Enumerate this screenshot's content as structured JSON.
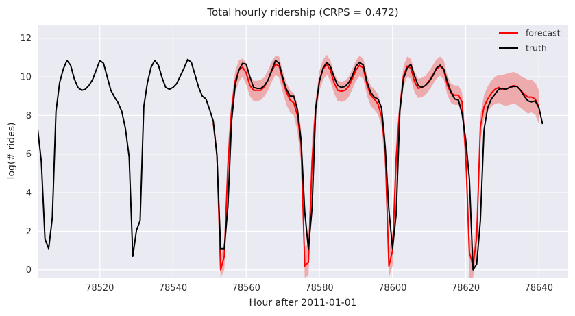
{
  "chart_data": {
    "type": "line",
    "title": "Total hourly ridership (CRPS = 0.472)",
    "xlabel": "Hour after 2011-01-01",
    "ylabel": "log(# rides)",
    "xlim": [
      78503,
      78648
    ],
    "ylim": [
      -0.4,
      12.7
    ],
    "xticks": [
      78520,
      78540,
      78560,
      78580,
      78600,
      78620,
      78640
    ],
    "yticks": [
      0,
      2,
      4,
      6,
      8,
      10,
      12
    ],
    "grid": true,
    "legend": {
      "placement": "top-right",
      "entries": [
        {
          "label": "forecast",
          "color": "#ff0000"
        },
        {
          "label": "truth",
          "color": "#000000"
        }
      ]
    },
    "series": [
      {
        "name": "truth",
        "color": "#000000",
        "x_start": 78503,
        "values": [
          7.3,
          5.6,
          1.6,
          1.1,
          2.7,
          8.2,
          9.7,
          10.4,
          10.85,
          10.6,
          9.9,
          9.45,
          9.3,
          9.35,
          9.55,
          9.85,
          10.35,
          10.85,
          10.7,
          10.0,
          9.3,
          8.95,
          8.65,
          8.2,
          7.3,
          5.85,
          0.7,
          2.05,
          2.55,
          8.45,
          9.7,
          10.5,
          10.85,
          10.6,
          9.95,
          9.45,
          9.35,
          9.45,
          9.65,
          10.05,
          10.45,
          10.9,
          10.75,
          10.1,
          9.45,
          9.0,
          8.85,
          8.3,
          7.7,
          5.9,
          1.1,
          1.1,
          3.3,
          7.7,
          9.6,
          10.35,
          10.7,
          10.65,
          10.0,
          9.45,
          9.4,
          9.4,
          9.55,
          9.85,
          10.35,
          10.85,
          10.7,
          9.95,
          9.35,
          9.0,
          9.0,
          8.3,
          6.7,
          3.0,
          1.1,
          3.2,
          8.35,
          9.75,
          10.45,
          10.75,
          10.55,
          10.0,
          9.55,
          9.45,
          9.5,
          9.7,
          10.05,
          10.55,
          10.75,
          10.6,
          9.75,
          9.2,
          8.95,
          8.85,
          8.4,
          6.35,
          3.1,
          1.1,
          2.9,
          8.25,
          9.9,
          10.45,
          10.65,
          10.05,
          9.55,
          9.45,
          9.55,
          9.75,
          10.05,
          10.45,
          10.6,
          10.4,
          9.75,
          9.2,
          8.85,
          8.8,
          8.1,
          6.75,
          4.7,
          0.0,
          0.3,
          2.55,
          7.25,
          8.4,
          8.85,
          9.1,
          9.35,
          9.4,
          9.35,
          9.45,
          9.5,
          9.5,
          9.3,
          9.0,
          8.75,
          8.7,
          8.75,
          8.4,
          7.55
        ]
      },
      {
        "name": "forecast",
        "color": "#ff0000",
        "band_color": "#f08080",
        "x_start": 78551,
        "values": [
          7.6,
          6.0,
          0.0,
          0.7,
          5.4,
          8.3,
          9.8,
          10.35,
          10.5,
          10.2,
          9.55,
          9.3,
          9.3,
          9.3,
          9.5,
          9.85,
          10.3,
          10.65,
          10.55,
          9.8,
          9.2,
          8.8,
          8.65,
          8.0,
          6.5,
          0.2,
          0.4,
          5.6,
          8.4,
          9.8,
          10.4,
          10.65,
          10.35,
          9.7,
          9.3,
          9.25,
          9.3,
          9.5,
          9.9,
          10.35,
          10.6,
          10.45,
          9.6,
          9.05,
          8.85,
          8.6,
          7.95,
          6.2,
          0.2,
          1.0,
          5.8,
          8.4,
          10.05,
          10.55,
          10.45,
          9.75,
          9.4,
          9.45,
          9.55,
          9.8,
          10.1,
          10.4,
          10.55,
          10.35,
          9.55,
          9.15,
          9.05,
          9.05,
          8.7,
          6.0,
          0.9,
          0.2,
          1.7,
          7.4,
          8.45,
          8.85,
          9.15,
          9.35,
          9.45,
          9.35,
          9.35,
          9.45,
          9.55,
          9.5,
          9.3,
          9.1,
          8.95,
          8.95,
          8.85,
          8.45
        ],
        "lower": [
          7.3,
          5.6,
          -0.4,
          0.0,
          3.5,
          7.7,
          9.2,
          9.75,
          10.0,
          9.6,
          9.0,
          8.75,
          8.75,
          8.8,
          9.0,
          9.3,
          9.75,
          10.1,
          9.95,
          9.2,
          8.55,
          8.15,
          8.0,
          7.2,
          5.5,
          -0.4,
          -0.3,
          3.5,
          7.8,
          9.25,
          9.85,
          10.1,
          9.8,
          9.15,
          8.75,
          8.7,
          8.75,
          8.95,
          9.35,
          9.8,
          10.05,
          9.9,
          9.05,
          8.5,
          8.3,
          8.05,
          7.4,
          5.2,
          -0.4,
          0.2,
          3.8,
          7.8,
          9.5,
          10.0,
          9.9,
          9.2,
          8.9,
          8.95,
          9.05,
          9.3,
          9.6,
          9.9,
          10.05,
          9.85,
          9.05,
          8.65,
          8.55,
          8.55,
          8.2,
          5.0,
          -0.4,
          -0.4,
          0.8,
          6.7,
          7.85,
          8.2,
          8.45,
          8.6,
          8.65,
          8.55,
          8.5,
          8.55,
          8.6,
          8.55,
          8.4,
          8.25,
          8.1,
          8.15,
          8.05,
          7.55
        ],
        "upper": [
          7.9,
          6.3,
          0.6,
          1.5,
          6.5,
          8.8,
          10.3,
          10.85,
          10.95,
          10.7,
          10.05,
          9.8,
          9.8,
          9.85,
          10.0,
          10.35,
          10.8,
          11.1,
          11.05,
          10.3,
          9.7,
          9.3,
          9.15,
          8.6,
          7.3,
          1.2,
          1.3,
          6.8,
          8.9,
          10.3,
          10.9,
          11.15,
          10.85,
          10.2,
          9.8,
          9.75,
          9.8,
          10.0,
          10.4,
          10.85,
          11.1,
          10.95,
          10.1,
          9.55,
          9.35,
          9.1,
          8.5,
          7.0,
          1.0,
          1.9,
          6.8,
          8.9,
          10.55,
          11.05,
          10.95,
          10.25,
          9.9,
          9.95,
          10.05,
          10.3,
          10.6,
          10.9,
          11.05,
          10.85,
          10.05,
          9.65,
          9.55,
          9.55,
          9.2,
          6.9,
          1.8,
          1.0,
          2.6,
          8.0,
          9.05,
          9.5,
          9.8,
          10.0,
          10.1,
          10.1,
          10.15,
          10.2,
          10.25,
          10.2,
          10.05,
          9.95,
          9.85,
          9.85,
          9.7,
          9.3
        ]
      }
    ]
  }
}
